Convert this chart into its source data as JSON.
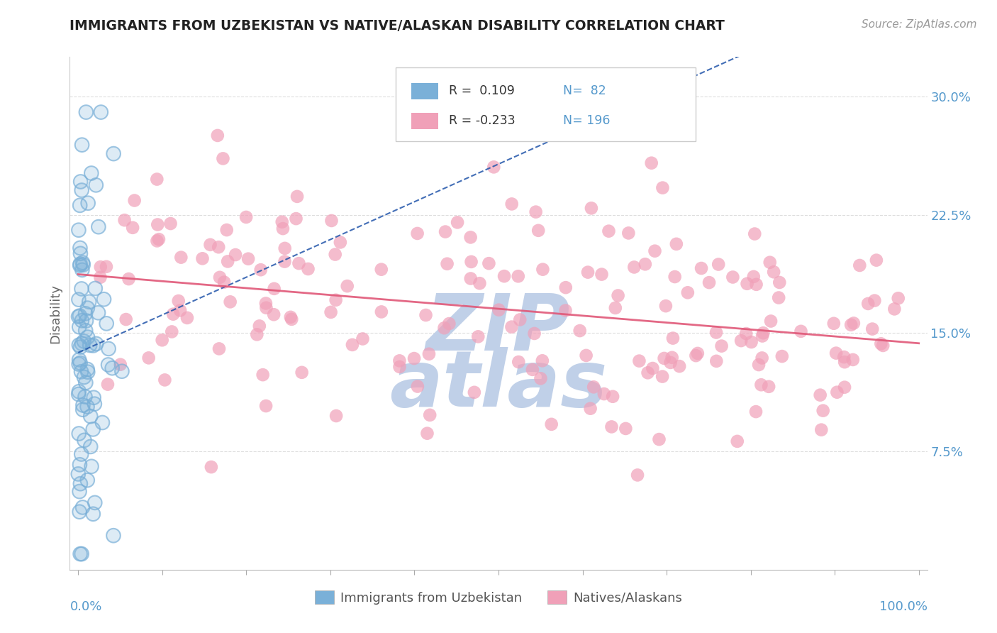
{
  "title": "IMMIGRANTS FROM UZBEKISTAN VS NATIVE/ALASKAN DISABILITY CORRELATION CHART",
  "source_text": "Source: ZipAtlas.com",
  "ylabel": "Disability",
  "color_blue": "#7ab0d8",
  "color_pink": "#f0a0b8",
  "trend_blue": "#2255aa",
  "trend_pink": "#e05878",
  "background": "#ffffff",
  "watermark_color": "#c0d0e8",
  "r1": 0.109,
  "n1": 82,
  "r2": -0.233,
  "n2": 196,
  "y_ticks": [
    0.075,
    0.15,
    0.225,
    0.3
  ],
  "y_tick_labels": [
    "7.5%",
    "15.0%",
    "22.5%",
    "30.0%"
  ],
  "legend_box_color": "#dddddd",
  "tick_color": "#5599cc",
  "title_color": "#222222",
  "source_color": "#999999",
  "ylabel_color": "#666666"
}
